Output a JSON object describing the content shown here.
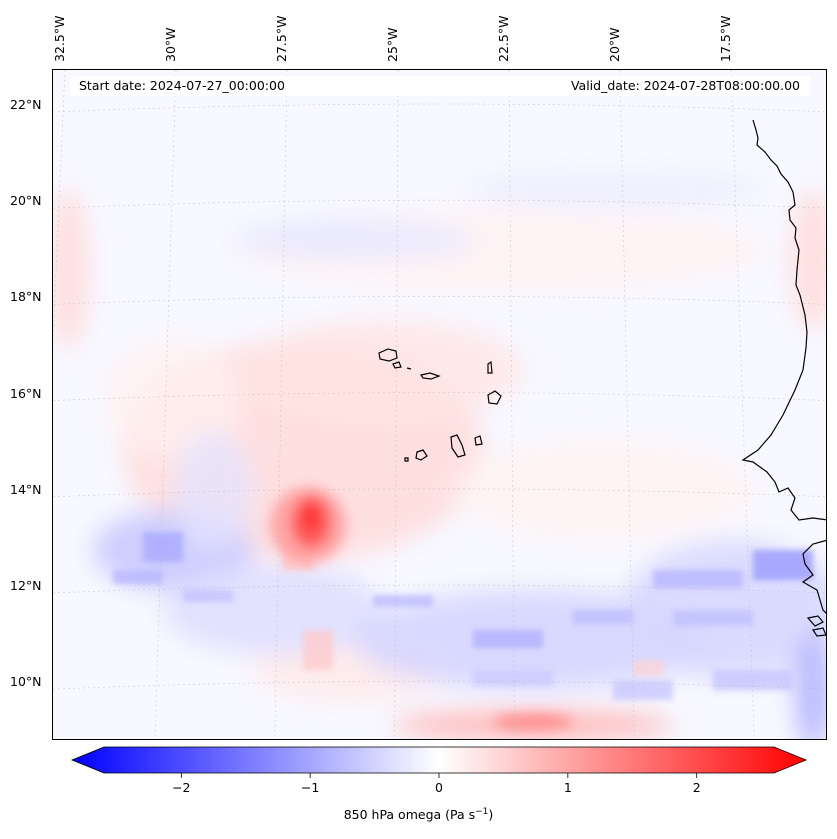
{
  "map": {
    "start_date": "Start date: 2024-07-27_00:00:00",
    "valid_date": "Valid_date: 2024-07-28T08:00:00.00",
    "lat_labels": [
      {
        "label": "22°N",
        "lat": 22
      },
      {
        "label": "20°N",
        "lat": 20
      },
      {
        "label": "18°N",
        "lat": 18
      },
      {
        "label": "16°N",
        "lat": 16
      },
      {
        "label": "14°N",
        "lat": 14
      },
      {
        "label": "12°N",
        "lat": 12
      },
      {
        "label": "10°N",
        "lat": 10
      }
    ],
    "lon_labels": [
      {
        "label": "32.5°W",
        "lon": -32.5
      },
      {
        "label": "30°W",
        "lon": -30
      },
      {
        "label": "27.5°W",
        "lon": -27.5
      },
      {
        "label": "25°W",
        "lon": -25
      },
      {
        "label": "22.5°W",
        "lon": -22.5
      },
      {
        "label": "20°W",
        "lon": -20
      },
      {
        "label": "17.5°W",
        "lon": -17.5
      }
    ],
    "gridlines": true,
    "colormap": "bwr"
  },
  "colorbar": {
    "label": "850 hPa omega (Pa s",
    "label_sup": "−1",
    "label_end": ")",
    "range": [
      -2.6,
      2.6
    ],
    "ticks": [
      {
        "label": "−2",
        "value": -2
      },
      {
        "label": "−1",
        "value": -1
      },
      {
        "label": "0",
        "value": 0
      },
      {
        "label": "1",
        "value": 1
      },
      {
        "label": "2",
        "value": 2
      }
    ],
    "colors": {
      "negative": "#0000ff",
      "zero": "#ffffff",
      "positive": "#ff0000"
    }
  }
}
